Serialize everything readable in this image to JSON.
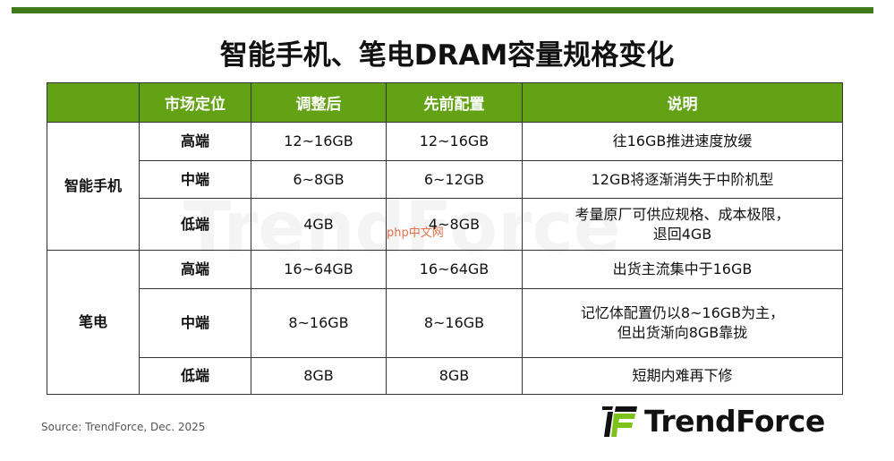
{
  "title": "智能手机、笔电DRAM容量规格变化",
  "table": {
    "headers": [
      "",
      "市场定位",
      "调整后",
      "先前配置",
      "说明"
    ],
    "groups": [
      {
        "name": "智能手机",
        "rows": [
          {
            "position": "高端",
            "adjusted": "12~16GB",
            "previous": "12~16GB",
            "note": [
              "往16GB推进速度放缓"
            ]
          },
          {
            "position": "中端",
            "adjusted": "6~8GB",
            "previous": "6~12GB",
            "note": [
              "12GB将逐渐消失于中阶机型"
            ]
          },
          {
            "position": "低端",
            "adjusted": "4GB",
            "previous": "4~8GB",
            "note": [
              "考量原厂可供应规格、成本极限，",
              "退回4GB"
            ]
          }
        ]
      },
      {
        "name": "笔电",
        "rows": [
          {
            "position": "高端",
            "adjusted": "16~64GB",
            "previous": "16~64GB",
            "note": [
              "出货主流集中于16GB"
            ]
          },
          {
            "position": "中端",
            "adjusted": "8~16GB",
            "previous": "8~16GB",
            "note": [
              "记忆体配置仍以8~16GB为主，",
              "但出货渐向8GB靠拢"
            ]
          },
          {
            "position": "低端",
            "adjusted": "8GB",
            "previous": "8GB",
            "note": [
              "短期内难再下修"
            ]
          }
        ]
      }
    ]
  },
  "watermark": "TrendForce",
  "watermark2": "php中文网",
  "source": "Source: TrendForce,  Dec. 2025",
  "logo": {
    "text": "TrendForce",
    "colors": {
      "dark": "#111111",
      "green": "#7cc21a"
    }
  },
  "colors": {
    "header_bg": "#62a214",
    "top_bar": "#3f7a1c"
  }
}
